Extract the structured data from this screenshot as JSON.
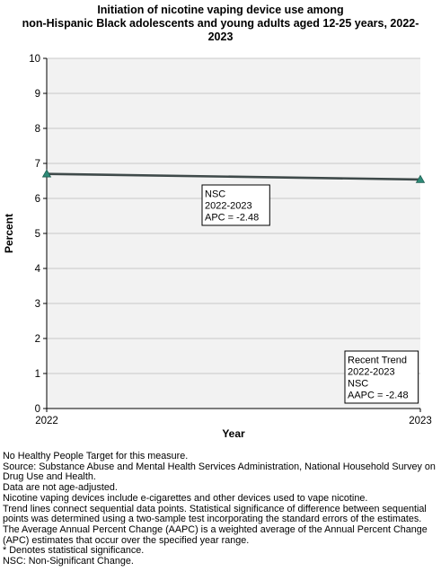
{
  "title_lines": [
    "Initiation of nicotine vaping device use among",
    "non-Hispanic Black adolescents and young adults aged 12-25 years, 2022-",
    "2023"
  ],
  "chart_data": {
    "type": "line",
    "x": [
      2022,
      2023
    ],
    "series": [
      {
        "values": [
          6.7,
          6.54
        ],
        "color": "#3f4a4a",
        "marker": "triangle",
        "marker_color": "#2e8b78"
      }
    ],
    "xlabel": "Year",
    "ylabel": "Percent",
    "ylim": [
      0,
      10
    ],
    "yticks": [
      0,
      1,
      2,
      3,
      4,
      5,
      6,
      7,
      8,
      9,
      10
    ],
    "xticks": [
      "2022",
      "2023"
    ],
    "grid": true,
    "plot_background": "#f2f2f2",
    "annotations": [
      {
        "lines": [
          "NSC",
          "2022-2023",
          "APC = -2.48"
        ]
      },
      {
        "lines": [
          "Recent Trend",
          "2022-2023",
          "NSC",
          "AAPC = -2.48"
        ]
      }
    ]
  },
  "footnotes": [
    "No Healthy People Target for this measure.",
    "Source: Substance Abuse and Mental Health Services Administration, National Household Survey on Drug Use and Health.",
    "Data are not age-adjusted.",
    "Nicotine vaping devices include e-cigarettes and other devices used to vape nicotine.",
    "Trend lines connect sequential data points. Statistical significance of difference between sequential points was determined using a two-sample test incorporating the standard errors of the estimates.",
    "The Average Annual Percent Change (AAPC) is a weighted average of the Annual Percent Change (APC) estimates that occur over the specified year range.",
    "* Denotes statistical significance.",
    "NSC: Non-Significant Change."
  ]
}
